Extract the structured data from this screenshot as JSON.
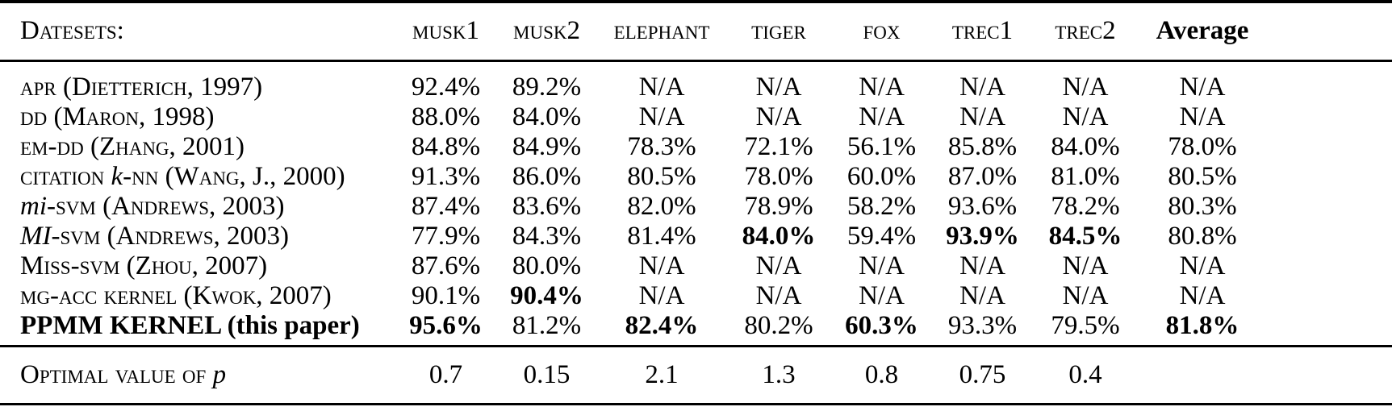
{
  "colors": {
    "text": "#000000",
    "background": "#ffffff",
    "rule": "#000000"
  },
  "table": {
    "corner_label": "Datesets:",
    "columns": [
      {
        "text": "musk1",
        "style": "sc"
      },
      {
        "text": "musk2",
        "style": "sc"
      },
      {
        "text": "elephant",
        "style": "sc"
      },
      {
        "text": "tiger",
        "style": "sc"
      },
      {
        "text": "fox",
        "style": "sc"
      },
      {
        "text": "trec1",
        "style": "sc"
      },
      {
        "text": "trec2",
        "style": "sc"
      },
      {
        "text": "Average",
        "style": "bold"
      }
    ],
    "rows": [
      {
        "label": [
          {
            "t": "apr (Dietterich, 1997)",
            "s": "sc"
          }
        ],
        "cells": [
          "92.4%",
          "89.2%",
          "N/A",
          "N/A",
          "N/A",
          "N/A",
          "N/A",
          "N/A"
        ]
      },
      {
        "label": [
          {
            "t": "dd (Maron, 1998)",
            "s": "sc"
          }
        ],
        "cells": [
          "88.0%",
          "84.0%",
          "N/A",
          "N/A",
          "N/A",
          "N/A",
          "N/A",
          "N/A"
        ]
      },
      {
        "label": [
          {
            "t": "em-dd (Zhang, 2001)",
            "s": "sc"
          }
        ],
        "cells": [
          "84.8%",
          "84.9%",
          "78.3%",
          "72.1%",
          "56.1%",
          "85.8%",
          "84.0%",
          "78.0%"
        ]
      },
      {
        "label": [
          {
            "t": "citation ",
            "s": "sc"
          },
          {
            "t": "k",
            "s": "it"
          },
          {
            "t": "-nn (Wang, J., 2000)",
            "s": "sc"
          }
        ],
        "cells": [
          "91.3%",
          "86.0%",
          "80.5%",
          "78.0%",
          "60.0%",
          "87.0%",
          "81.0%",
          "80.5%"
        ]
      },
      {
        "label": [
          {
            "t": "mi",
            "s": "it"
          },
          {
            "t": "-svm (Andrews, 2003)",
            "s": "sc"
          }
        ],
        "cells": [
          "87.4%",
          "83.6%",
          "82.0%",
          "78.9%",
          "58.2%",
          "93.6%",
          "78.2%",
          "80.3%"
        ]
      },
      {
        "label": [
          {
            "t": "MI",
            "s": "it"
          },
          {
            "t": "-svm (Andrews, 2003)",
            "s": "sc"
          }
        ],
        "cells": [
          "77.9%",
          "84.3%",
          "81.4%",
          {
            "v": "84.0%",
            "b": true
          },
          "59.4%",
          {
            "v": "93.9%",
            "b": true
          },
          {
            "v": "84.5%",
            "b": true
          },
          "80.8%"
        ]
      },
      {
        "label": [
          {
            "t": "Miss-svm (Zhou, 2007)",
            "s": "sc"
          }
        ],
        "cells": [
          "87.6%",
          "80.0%",
          "N/A",
          "N/A",
          "N/A",
          "N/A",
          "N/A",
          "N/A"
        ]
      },
      {
        "label": [
          {
            "t": "mg-acc kernel (Kwok, 2007)",
            "s": "sc"
          }
        ],
        "cells": [
          "90.1%",
          {
            "v": "90.4%",
            "b": true
          },
          "N/A",
          "N/A",
          "N/A",
          "N/A",
          "N/A",
          "N/A"
        ]
      },
      {
        "label": [
          {
            "t": "PPMM KERNEL (this paper)",
            "s": "bold"
          }
        ],
        "cells": [
          {
            "v": "95.6%",
            "b": true
          },
          "81.2%",
          {
            "v": "82.4%",
            "b": true
          },
          "80.2%",
          {
            "v": "60.3%",
            "b": true
          },
          "93.3%",
          "79.5%",
          {
            "v": "81.8%",
            "b": true
          }
        ]
      }
    ],
    "footer_row": {
      "label": [
        {
          "t": "Optimal value of ",
          "s": "sc"
        },
        {
          "t": "p",
          "s": "it"
        }
      ],
      "cells": [
        "0.7",
        "0.15",
        "2.1",
        "1.3",
        "0.8",
        "0.75",
        "0.4",
        ""
      ]
    }
  }
}
